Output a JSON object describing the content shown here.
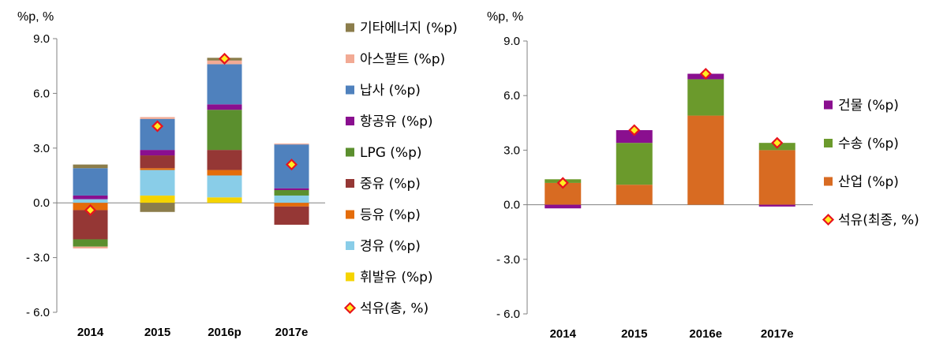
{
  "chart_data": [
    {
      "type": "bar",
      "stacked": true,
      "unit_label": "%p, %",
      "categories": [
        "2014",
        "2015",
        "2016p",
        "2017e"
      ],
      "ylim": [
        -6.0,
        9.0
      ],
      "yticks": [
        "9.0",
        "6.0",
        "3.0",
        "0.0",
        "- 3.0",
        "- 6.0"
      ],
      "yticks_values": [
        9,
        6,
        3,
        0,
        -3,
        -6
      ],
      "legend_position": "right",
      "series": [
        {
          "name": "휘발유 (%p)",
          "color": "#f5d400",
          "values": [
            0.0,
            0.4,
            0.3,
            0.0
          ]
        },
        {
          "name": "경유 (%p)",
          "color": "#89cde8",
          "values": [
            0.2,
            1.4,
            1.2,
            0.4
          ]
        },
        {
          "name": "등유 (%p)",
          "color": "#e46c0a",
          "values": [
            -0.4,
            0.1,
            0.3,
            -0.2
          ]
        },
        {
          "name": "중유 (%p)",
          "color": "#953735",
          "values": [
            -1.6,
            0.7,
            1.1,
            -1.0
          ]
        },
        {
          "name": "LPG (%p)",
          "color": "#5b8f2e",
          "values": [
            -0.4,
            0.0,
            2.2,
            0.3
          ]
        },
        {
          "name": "항공유 (%p)",
          "color": "#8a0f8f",
          "values": [
            0.2,
            0.3,
            0.3,
            0.1
          ]
        },
        {
          "name": "납사 (%p)",
          "color": "#4f81bd",
          "values": [
            1.5,
            1.7,
            2.2,
            2.4
          ]
        },
        {
          "name": "아스팔트 (%p)",
          "color": "#f2aa94",
          "values": [
            -0.1,
            0.1,
            0.2,
            0.05
          ]
        },
        {
          "name": "기타에너지 (%p)",
          "color": "#8b7d4b",
          "values": [
            0.2,
            -0.5,
            0.15,
            0.0
          ]
        }
      ],
      "markers": {
        "name": "석유(총, %)",
        "values": [
          -0.4,
          4.2,
          7.9,
          2.1
        ]
      }
    },
    {
      "type": "bar",
      "stacked": true,
      "unit_label": "%p, %",
      "categories": [
        "2014",
        "2015",
        "2016e",
        "2017e"
      ],
      "ylim": [
        -6.0,
        9.0
      ],
      "yticks": [
        "9.0",
        "6.0",
        "3.0",
        "0.0",
        "- 3.0",
        "- 6.0"
      ],
      "yticks_values": [
        9,
        6,
        3,
        0,
        -3,
        -6
      ],
      "legend_position": "right",
      "series": [
        {
          "name": "산업 (%p)",
          "color": "#d86b22",
          "values": [
            1.2,
            1.1,
            4.9,
            3.0
          ]
        },
        {
          "name": "수송 (%p)",
          "color": "#6b9a2c",
          "values": [
            0.2,
            2.3,
            2.0,
            0.4
          ]
        },
        {
          "name": "건물 (%p)",
          "color": "#8a0f8f",
          "values": [
            -0.2,
            0.7,
            0.3,
            -0.1
          ]
        }
      ],
      "markers": {
        "name": "석유(최종, %)",
        "values": [
          1.2,
          4.1,
          7.2,
          3.4
        ]
      }
    }
  ]
}
